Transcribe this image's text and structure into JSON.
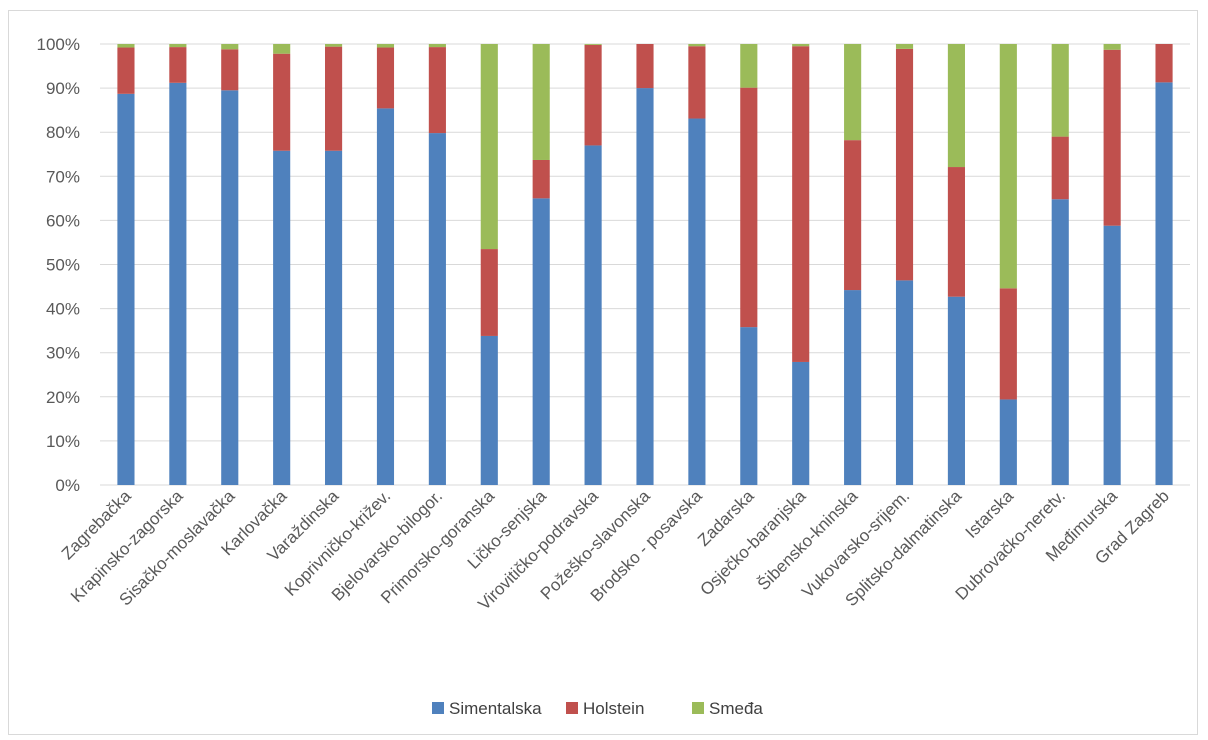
{
  "chart_data": {
    "type": "bar",
    "stacked": "percent",
    "title": "",
    "xlabel": "",
    "ylabel": "",
    "ylim": [
      0,
      100
    ],
    "y_ticks": [
      "0%",
      "10%",
      "20%",
      "30%",
      "40%",
      "50%",
      "60%",
      "70%",
      "80%",
      "90%",
      "100%"
    ],
    "grid": true,
    "legend_position": "bottom",
    "categories": [
      "Zagrebačka",
      "Krapinsko-zagorska",
      "Sisačko-moslavačka",
      "Karlovačka",
      "Varaždinska",
      "Koprivničko-križev.",
      "Bjelovarsko-bilogor.",
      "Primorsko-goranska",
      "Ličko-senjska",
      "Virovitičko-podravska",
      "Požeško-slavonska",
      "Brodsko - posavska",
      "Zadarska",
      "Osječko-baranjska",
      "Šibensko-kninska",
      "Vukovarsko-srijem.",
      "Splitsko-dalmatinska",
      "Istarska",
      "Dubrovačko-neretv.",
      "Međimurska",
      "Grad Zagreb"
    ],
    "series": [
      {
        "name": "Simentalska",
        "color": "#4f81bd",
        "values": [
          88.7,
          91.2,
          89.5,
          75.8,
          75.8,
          85.4,
          79.8,
          33.8,
          65.0,
          77.0,
          90.0,
          83.1,
          35.8,
          27.9,
          44.2,
          46.4,
          42.7,
          19.4,
          64.8,
          58.8,
          91.3
        ]
      },
      {
        "name": "Holstein",
        "color": "#c0504d",
        "values": [
          10.5,
          8.1,
          9.3,
          22.0,
          23.6,
          13.8,
          19.5,
          19.7,
          8.7,
          22.8,
          10.0,
          16.4,
          54.3,
          71.6,
          34.0,
          52.5,
          29.4,
          25.2,
          14.2,
          39.9,
          8.7
        ]
      },
      {
        "name": "Smeđa",
        "color": "#9bbb59",
        "values": [
          0.8,
          0.7,
          1.2,
          2.2,
          0.6,
          0.8,
          0.7,
          46.5,
          26.3,
          0.2,
          0.0,
          0.5,
          9.9,
          0.5,
          21.8,
          1.1,
          27.9,
          55.4,
          21.0,
          1.3,
          0.0
        ]
      }
    ]
  }
}
